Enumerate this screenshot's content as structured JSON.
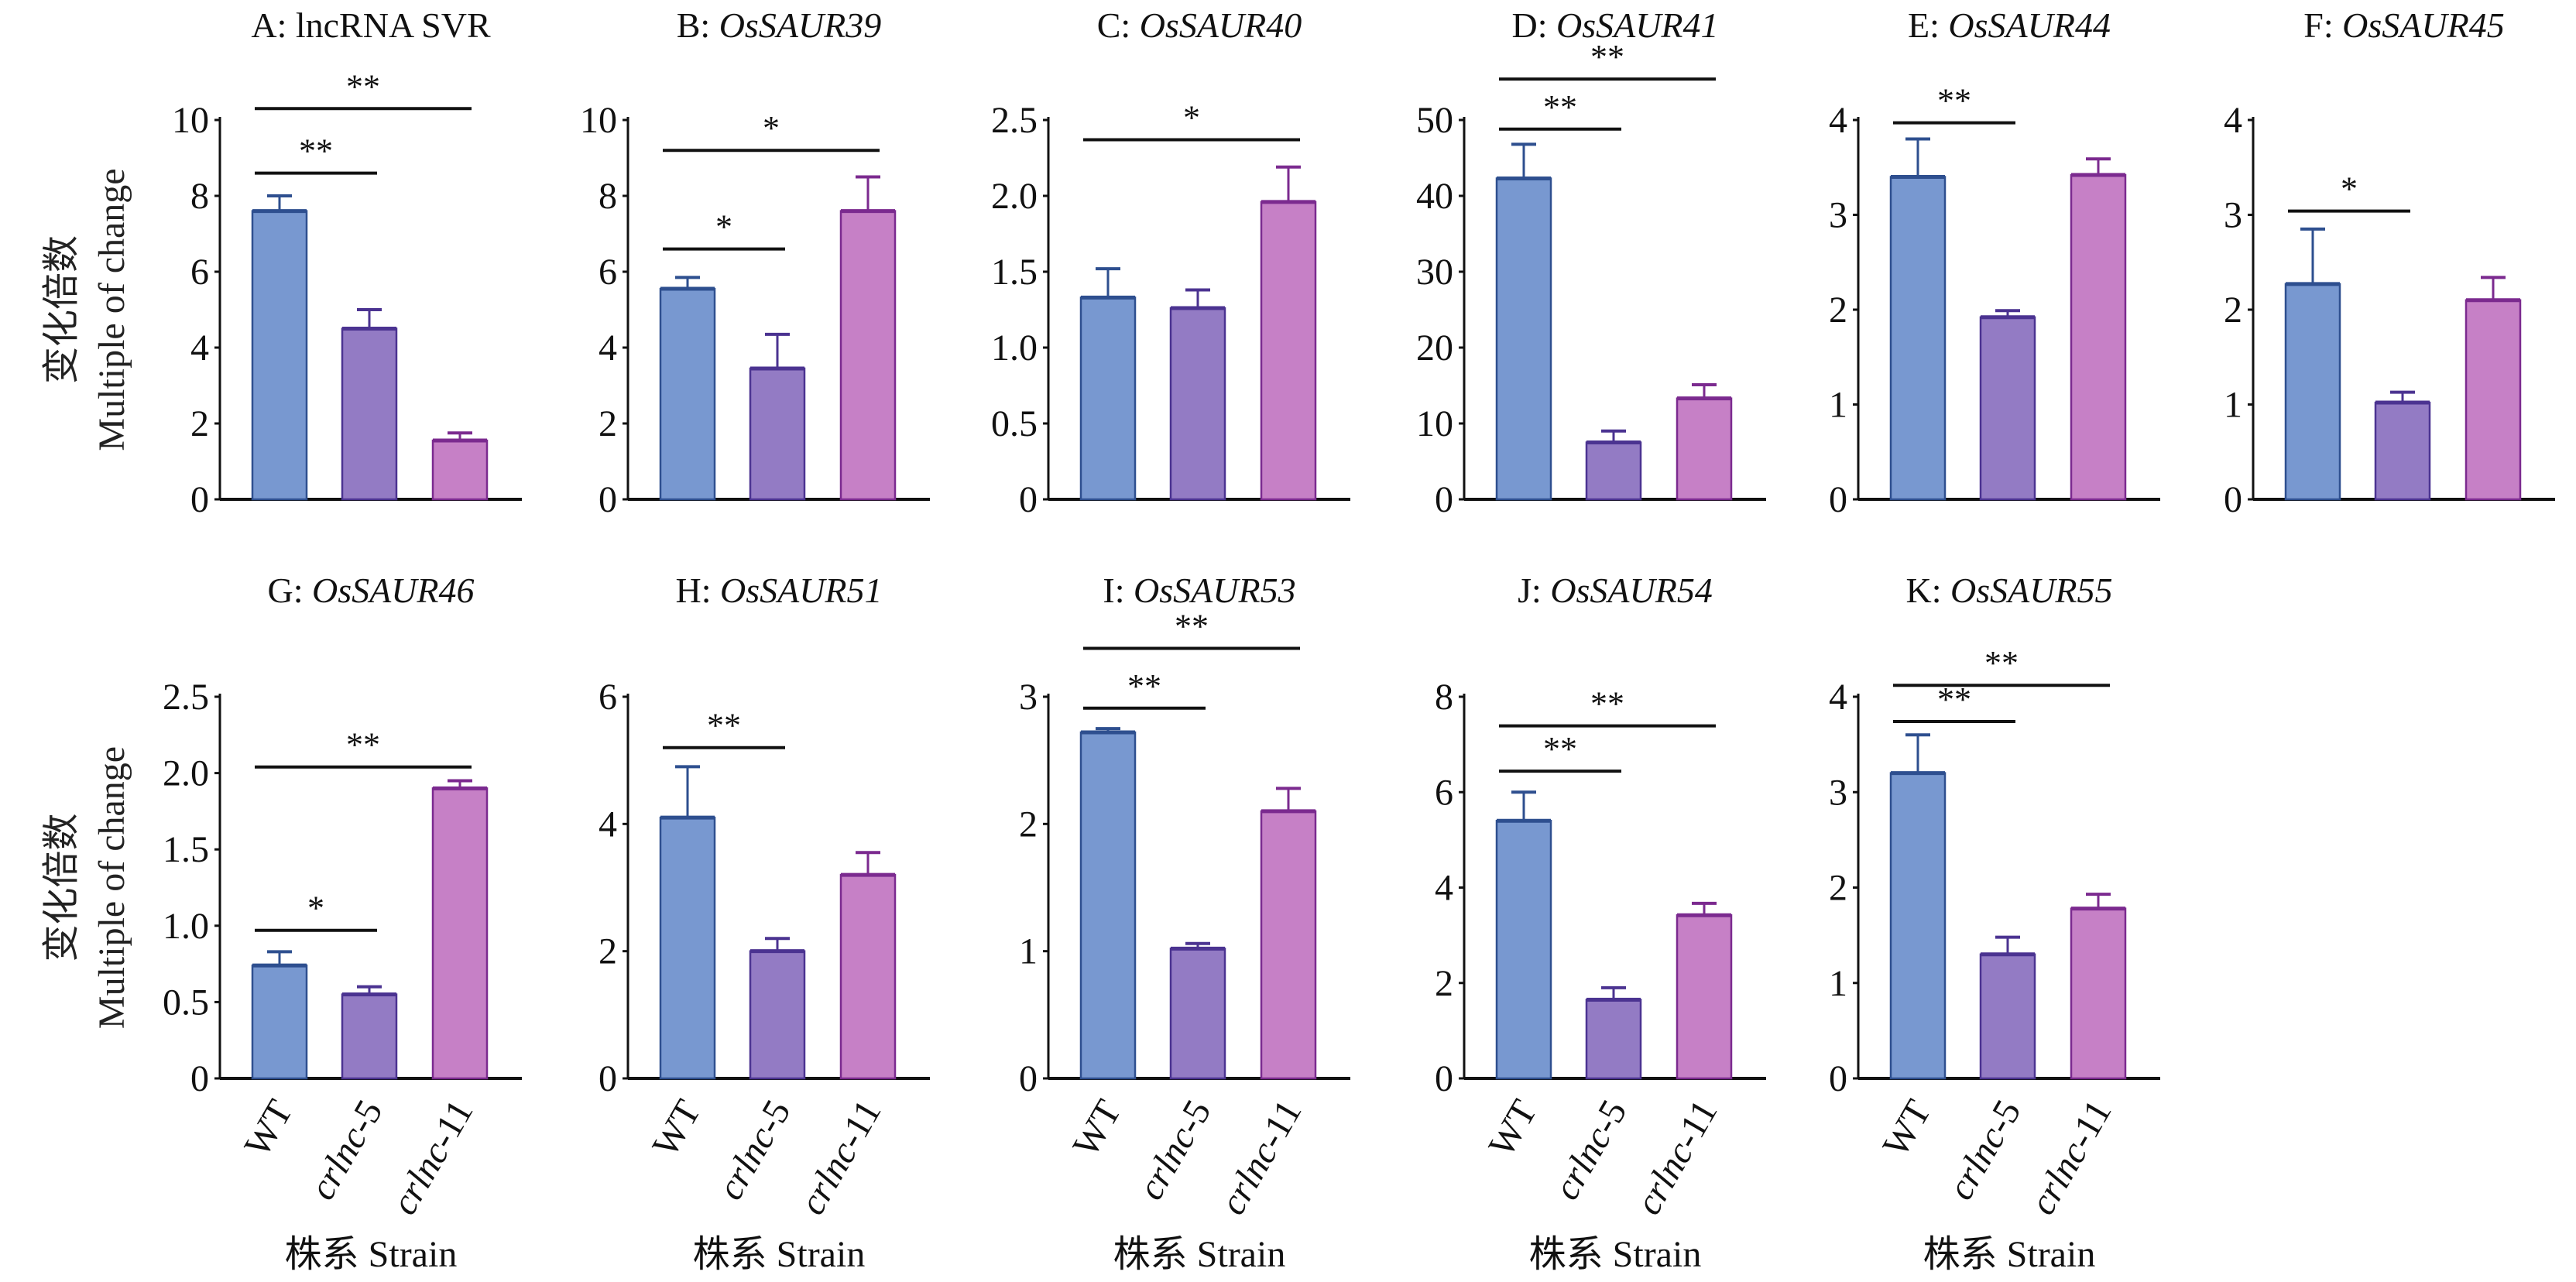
{
  "colors": {
    "fills": [
      "#7898D0",
      "#937BC4",
      "#C680C6"
    ],
    "strokes": [
      "#2E4F8F",
      "#4B3391",
      "#7B2A8F"
    ]
  },
  "y_label": {
    "zh": "变化倍数",
    "en": "Multiple of change"
  },
  "x_label": "株系 Strain",
  "categories": [
    {
      "italic": "",
      "plain": "WT"
    },
    {
      "italic": "crlnc",
      "plain": "-5"
    },
    {
      "italic": "crlnc",
      "plain": "-11"
    }
  ],
  "chart_data": [
    {
      "type": "bar",
      "title_prefix": "A: ",
      "title_gene": "lncRNA SVR",
      "gene_italic": false,
      "ylim": [
        0,
        10
      ],
      "yticks": [
        "0",
        "2",
        "4",
        "6",
        "8",
        "10"
      ],
      "values": [
        7.6,
        4.5,
        1.55
      ],
      "errors": [
        0.4,
        0.5,
        0.2
      ],
      "significance": [
        {
          "from": 0,
          "to": 1,
          "label": "**",
          "y": 8.6
        },
        {
          "from": 0,
          "to": 2,
          "label": "**",
          "y": 10.3
        }
      ]
    },
    {
      "type": "bar",
      "title_prefix": "B: ",
      "title_gene": "OsSAUR39",
      "gene_italic": true,
      "ylim": [
        0,
        10
      ],
      "yticks": [
        "0",
        "2",
        "4",
        "6",
        "8",
        "10"
      ],
      "values": [
        5.55,
        3.45,
        7.6
      ],
      "errors": [
        0.3,
        0.9,
        0.9
      ],
      "significance": [
        {
          "from": 0,
          "to": 1,
          "label": "*",
          "y": 6.6
        },
        {
          "from": 0,
          "to": 2,
          "label": "*",
          "y": 9.2
        }
      ]
    },
    {
      "type": "bar",
      "title_prefix": "C: ",
      "title_gene": "OsSAUR40",
      "gene_italic": true,
      "ylim": [
        0,
        2.5
      ],
      "yticks": [
        "0",
        "0.5",
        "1.0",
        "1.5",
        "2.0",
        "2.5"
      ],
      "values": [
        1.33,
        1.26,
        1.96
      ],
      "errors": [
        0.19,
        0.12,
        0.23
      ],
      "significance": [
        {
          "from": 0,
          "to": 2,
          "label": "*",
          "y": 2.37
        }
      ]
    },
    {
      "type": "bar",
      "title_prefix": "D: ",
      "title_gene": "OsSAUR41",
      "gene_italic": true,
      "ylim": [
        0,
        50
      ],
      "yticks": [
        "0",
        "10",
        "20",
        "30",
        "40",
        "50"
      ],
      "values": [
        42.3,
        7.5,
        13.3
      ],
      "errors": [
        4.5,
        1.5,
        1.8
      ],
      "significance": [
        {
          "from": 0,
          "to": 1,
          "label": "**",
          "y": 48.8
        },
        {
          "from": 0,
          "to": 2,
          "label": "**",
          "y": 55.4
        }
      ]
    },
    {
      "type": "bar",
      "title_prefix": "E: ",
      "title_gene": "OsSAUR44",
      "gene_italic": true,
      "ylim": [
        0,
        4
      ],
      "yticks": [
        "0",
        "1",
        "2",
        "3",
        "4"
      ],
      "values": [
        3.4,
        1.92,
        3.42
      ],
      "errors": [
        0.4,
        0.07,
        0.17
      ],
      "significance": [
        {
          "from": 0,
          "to": 1,
          "label": "**",
          "y": 3.97
        }
      ]
    },
    {
      "type": "bar",
      "title_prefix": "F: ",
      "title_gene": "OsSAUR45",
      "gene_italic": true,
      "ylim": [
        0,
        4
      ],
      "yticks": [
        "0",
        "1",
        "2",
        "3",
        "4"
      ],
      "values": [
        2.27,
        1.02,
        2.1
      ],
      "errors": [
        0.58,
        0.11,
        0.24
      ],
      "significance": [
        {
          "from": 0,
          "to": 1,
          "label": "*",
          "y": 3.04
        }
      ]
    },
    {
      "type": "bar",
      "title_prefix": "G: ",
      "title_gene": "OsSAUR46",
      "gene_italic": true,
      "ylim": [
        0,
        2.5
      ],
      "yticks": [
        "0",
        "0.5",
        "1.0",
        "1.5",
        "2.0",
        "2.5"
      ],
      "values": [
        0.74,
        0.55,
        1.9
      ],
      "errors": [
        0.09,
        0.05,
        0.05
      ],
      "significance": [
        {
          "from": 0,
          "to": 1,
          "label": "*",
          "y": 0.97
        },
        {
          "from": 0,
          "to": 2,
          "label": "**",
          "y": 2.04
        }
      ]
    },
    {
      "type": "bar",
      "title_prefix": "H: ",
      "title_gene": "OsSAUR51",
      "gene_italic": true,
      "ylim": [
        0,
        6
      ],
      "yticks": [
        "0",
        "2",
        "4",
        "6"
      ],
      "values": [
        4.1,
        2.0,
        3.2
      ],
      "errors": [
        0.8,
        0.2,
        0.35
      ],
      "significance": [
        {
          "from": 0,
          "to": 1,
          "label": "**",
          "y": 5.2
        }
      ]
    },
    {
      "type": "bar",
      "title_prefix": "I: ",
      "title_gene": "OsSAUR53",
      "gene_italic": true,
      "ylim": [
        0,
        3
      ],
      "yticks": [
        "0",
        "1",
        "2",
        "3"
      ],
      "values": [
        2.72,
        1.02,
        2.1
      ],
      "errors": [
        0.03,
        0.04,
        0.18
      ],
      "significance": [
        {
          "from": 0,
          "to": 1,
          "label": "**",
          "y": 2.91
        },
        {
          "from": 0,
          "to": 2,
          "label": "**",
          "y": 3.38
        }
      ]
    },
    {
      "type": "bar",
      "title_prefix": "J: ",
      "title_gene": "OsSAUR54",
      "gene_italic": true,
      "ylim": [
        0,
        8
      ],
      "yticks": [
        "0",
        "2",
        "4",
        "6",
        "8"
      ],
      "values": [
        5.4,
        1.65,
        3.42
      ],
      "errors": [
        0.6,
        0.25,
        0.25
      ],
      "significance": [
        {
          "from": 0,
          "to": 1,
          "label": "**",
          "y": 6.44
        },
        {
          "from": 0,
          "to": 2,
          "label": "**",
          "y": 7.39
        }
      ]
    },
    {
      "type": "bar",
      "title_prefix": "K: ",
      "title_gene": "OsSAUR55",
      "gene_italic": true,
      "ylim": [
        0,
        4
      ],
      "yticks": [
        "0",
        "1",
        "2",
        "3",
        "4"
      ],
      "values": [
        3.2,
        1.3,
        1.78
      ],
      "errors": [
        0.4,
        0.18,
        0.15
      ],
      "significance": [
        {
          "from": 0,
          "to": 1,
          "label": "**",
          "y": 3.74
        },
        {
          "from": 0,
          "to": 2,
          "label": "**",
          "y": 4.12
        }
      ]
    }
  ]
}
